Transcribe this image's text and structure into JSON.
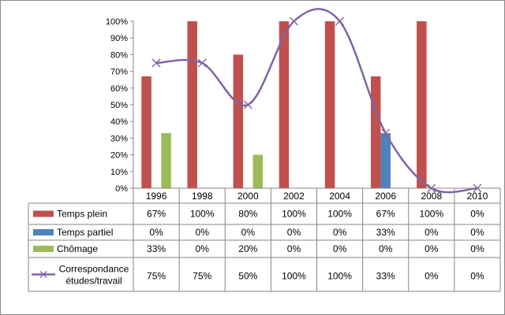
{
  "chart_data": {
    "type": "bar",
    "categories": [
      "1996",
      "1998",
      "2000",
      "2002",
      "2004",
      "2006",
      "2008",
      "2010"
    ],
    "ylim": [
      0,
      100
    ],
    "y_ticks": [
      "0%",
      "10%",
      "20%",
      "30%",
      "40%",
      "50%",
      "60%",
      "70%",
      "80%",
      "90%",
      "100%"
    ],
    "grid": false,
    "legend_placement": "data-table-left",
    "series": [
      {
        "name": "Temps plein",
        "kind": "bar",
        "color": "#C0504D",
        "values": [
          67,
          100,
          80,
          100,
          100,
          67,
          100,
          0
        ],
        "labels": [
          "67%",
          "100%",
          "80%",
          "100%",
          "100%",
          "67%",
          "100%",
          "0%"
        ]
      },
      {
        "name": "Temps partiel",
        "kind": "bar",
        "color": "#4F81BD",
        "values": [
          0,
          0,
          0,
          0,
          0,
          33,
          0,
          0
        ],
        "labels": [
          "0%",
          "0%",
          "0%",
          "0%",
          "0%",
          "33%",
          "0%",
          "0%"
        ]
      },
      {
        "name": "Chômage",
        "kind": "bar",
        "color": "#9BBB59",
        "values": [
          33,
          0,
          20,
          0,
          0,
          0,
          0,
          0
        ],
        "labels": [
          "33%",
          "0%",
          "20%",
          "0%",
          "0%",
          "0%",
          "0%",
          "0%"
        ]
      },
      {
        "name": "Correspondance études/travail",
        "legend_lines": [
          "Correspondance",
          "études/travail"
        ],
        "kind": "line",
        "marker": "x",
        "smooth": true,
        "color": "#8064A2",
        "values": [
          75,
          75,
          50,
          100,
          100,
          33,
          0,
          0
        ],
        "labels": [
          "75%",
          "75%",
          "50%",
          "100%",
          "100%",
          "33%",
          "0%",
          "0%"
        ]
      }
    ]
  }
}
